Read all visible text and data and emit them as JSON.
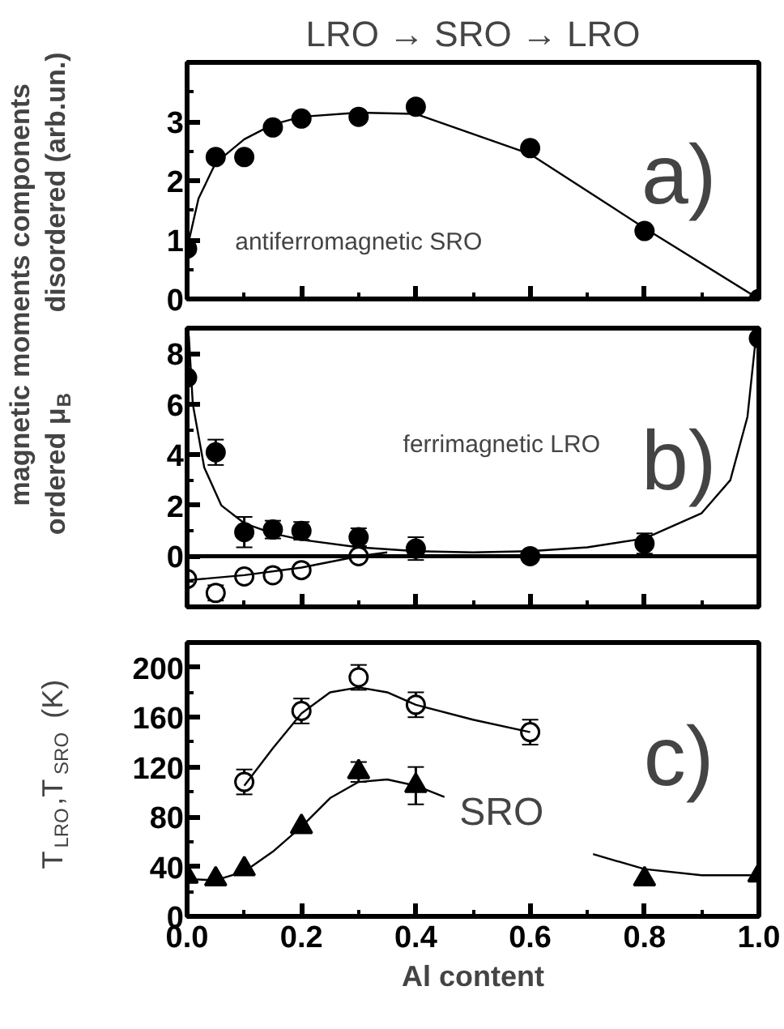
{
  "chart_data": [
    {
      "type": "scatter",
      "title": "LRO → SRO → LRO",
      "ylabel": "disordered (arb.un.)",
      "annotations": [
        "antiferromagnetic SRO",
        "a)",
        "magnetic moments components"
      ],
      "xlim": [
        0,
        1
      ],
      "xticks": [
        0,
        0.2,
        0.4,
        0.6,
        0.8,
        1.0
      ],
      "ylim": [
        0,
        4
      ],
      "yticks": [
        0,
        1,
        2,
        3
      ],
      "tick_labels": "y",
      "grid": false,
      "series": [
        {
          "marker": "circle",
          "color": "#000000",
          "x": [
            0,
            0.05,
            0.1,
            0.15,
            0.2,
            0.3,
            0.4,
            0.6,
            0.8,
            1.0
          ],
          "values": [
            0.85,
            2.4,
            2.4,
            2.9,
            3.05,
            3.08,
            3.25,
            2.55,
            1.15,
            0.0
          ]
        },
        {
          "type": "line",
          "color": "#000000",
          "x": [
            0,
            0.02,
            0.05,
            0.1,
            0.15,
            0.2,
            0.3,
            0.4,
            0.6,
            0.8,
            1.0
          ],
          "values": [
            0.85,
            1.7,
            2.3,
            2.7,
            2.95,
            3.08,
            3.15,
            3.13,
            2.45,
            1.2,
            0.0
          ]
        }
      ]
    },
    {
      "type": "scatter",
      "ylabel": "ordered μ$_{B}$",
      "annotations": [
        "ferrimagnetic LRO",
        "b)"
      ],
      "xlim": [
        0,
        1
      ],
      "xticks": [
        0,
        0.2,
        0.4,
        0.6,
        0.8,
        1.0
      ],
      "ylim": [
        -2,
        9
      ],
      "yticks": [
        0,
        2,
        4,
        6,
        8
      ],
      "tick_labels": "y",
      "grid": false,
      "ref_lines": [
        {
          "axis": "y",
          "value": 0,
          "color": "#000000"
        }
      ],
      "series": [
        {
          "marker": "circle",
          "color": "#000000",
          "x": [
            0,
            0.05,
            0.1,
            0.15,
            0.2,
            0.3,
            0.4,
            0.6,
            0.8,
            1.0
          ],
          "values": [
            7.05,
            4.1,
            0.95,
            1.05,
            1.0,
            0.75,
            0.3,
            0.0,
            0.5,
            8.6
          ],
          "errors": [
            null,
            0.5,
            0.6,
            0.35,
            0.35,
            0.35,
            0.45,
            null,
            0.4,
            null
          ]
        },
        {
          "marker": "circle",
          "color": "#ffffff",
          "x": [
            0,
            0.05,
            0.1,
            0.15,
            0.2,
            0.3
          ],
          "values": [
            -0.9,
            -1.45,
            -0.8,
            -0.75,
            -0.55,
            0.0
          ],
          "errors": [
            null,
            0.3,
            null,
            null,
            null,
            null
          ]
        },
        {
          "type": "line",
          "color": "#000000",
          "x": [
            0.003,
            0.01,
            0.03,
            0.06,
            0.1,
            0.15,
            0.2,
            0.3,
            0.4,
            0.5,
            0.6,
            0.7,
            0.8,
            0.9,
            0.95,
            0.98,
            0.995
          ],
          "values": [
            8.7,
            6,
            3.5,
            2.0,
            1.3,
            0.9,
            0.65,
            0.35,
            0.2,
            0.15,
            0.2,
            0.35,
            0.7,
            1.7,
            3.0,
            5.5,
            8.7
          ]
        },
        {
          "type": "line",
          "color": "#000000",
          "x": [
            0,
            0.1,
            0.2,
            0.3,
            0.35
          ],
          "values": [
            -0.95,
            -0.75,
            -0.45,
            0.0,
            0.15
          ]
        }
      ]
    },
    {
      "type": "scatter",
      "xlabel": "Al content",
      "ylabel": "T$_{LRO}$,T$_{SRO}$ (K)",
      "annotations": [
        "SRO",
        "c)"
      ],
      "xlim": [
        0,
        1
      ],
      "xticks": [
        {
          "value": 0,
          "label": "0.0"
        },
        0.2,
        0.4,
        0.6,
        0.8,
        {
          "value": 1,
          "label": "1.0"
        }
      ],
      "ylim": [
        0,
        220
      ],
      "yticks": [
        0,
        40,
        80,
        120,
        160,
        200
      ],
      "grid": false,
      "series": [
        {
          "marker": "circle",
          "color": "#ffffff",
          "x": [
            0.1,
            0.2,
            0.3,
            0.4,
            0.6
          ],
          "values": [
            108,
            165,
            192,
            170,
            148
          ],
          "errors": [
            10,
            10,
            10,
            10,
            10
          ]
        },
        {
          "marker": "triangle",
          "color": "#000000",
          "x": [
            0,
            0.05,
            0.1,
            0.2,
            0.3,
            0.4,
            0.8,
            1.0
          ],
          "values": [
            32,
            30,
            38,
            72,
            116,
            105,
            30,
            33
          ],
          "errors": [
            null,
            null,
            null,
            null,
            8,
            15,
            null,
            null
          ]
        },
        {
          "type": "line",
          "color": "#000000",
          "x": [
            0.1,
            0.15,
            0.2,
            0.25,
            0.3,
            0.35,
            0.4,
            0.5,
            0.6
          ],
          "values": [
            105,
            135,
            163,
            180,
            184,
            180,
            170,
            158,
            148
          ]
        },
        {
          "type": "line",
          "color": "#000000",
          "x": [
            0,
            0.05,
            0.1,
            0.15,
            0.2,
            0.25,
            0.3,
            0.35,
            0.4,
            0.45,
            0.6,
            0.71,
            0.8,
            0.9,
            1.0
          ],
          "values": [
            30,
            29,
            36,
            52,
            72,
            95,
            108,
            110,
            105,
            96,
            null,
            50,
            38,
            33,
            33
          ]
        }
      ]
    }
  ]
}
